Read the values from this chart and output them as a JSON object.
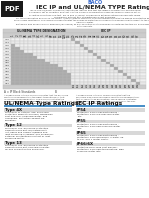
{
  "title": "IEC IP and UL/NEMA TYPE Ratings",
  "subtitle_brand": "BACO",
  "page_bg": "#ffffff",
  "pdf_icon_bg": "#1a1a1a",
  "pdf_text": "PDF",
  "brand_color": "#3366cc",
  "section_bar_color": "#4a90c8",
  "body_text_color": "#222222",
  "ul_nema_title": "UL/NEMA Type Ratings",
  "iec_ip_title": "IEC IP Ratings",
  "nema_cols": [
    "1",
    "2",
    "3",
    "3R",
    "3S",
    "4",
    "4X",
    "5",
    "6",
    "6P",
    "11",
    "12",
    "12K",
    "13"
  ],
  "ip_rows": [
    "IP20",
    "IP21",
    "IP22",
    "IP30",
    "IP32",
    "IP42",
    "IP43",
    "IP50",
    "IP52",
    "IP53",
    "IP54",
    "IP55",
    "IP60",
    "IP65",
    "IP66",
    "IP67"
  ],
  "ip_right_col": [
    "20",
    "21",
    "22",
    "30",
    "32",
    "42",
    "43",
    "50",
    "52",
    "53",
    "54",
    "55",
    "60",
    "65",
    "66",
    "67"
  ],
  "nema_shaded": {
    "IP20": [],
    "IP21": [],
    "IP22": [
      0
    ],
    "IP30": [
      0,
      1
    ],
    "IP32": [
      0,
      1,
      2
    ],
    "IP42": [
      0,
      1,
      2,
      3,
      4
    ],
    "IP43": [
      0,
      1,
      2,
      3,
      4,
      5
    ],
    "IP50": [
      0,
      1,
      2,
      3,
      4,
      5,
      6,
      7
    ],
    "IP52": [
      0,
      1,
      2,
      3,
      4,
      5,
      6,
      7,
      8
    ],
    "IP53": [
      0,
      1,
      2,
      3,
      4,
      5,
      6,
      7,
      8,
      9,
      10
    ],
    "IP54": [
      0,
      1,
      2,
      3,
      4,
      5,
      6,
      7,
      8,
      9,
      10,
      11
    ],
    "IP55": [
      0,
      1,
      2,
      3,
      4,
      5,
      6,
      7,
      8,
      9,
      10,
      11,
      12
    ],
    "IP60": [
      0,
      1,
      2,
      3,
      4,
      5,
      6,
      7,
      8,
      9,
      10,
      11,
      12,
      13
    ],
    "IP65": [
      0,
      1,
      2,
      3,
      4,
      5,
      6,
      7,
      8,
      9,
      10,
      11,
      12,
      13
    ],
    "IP66": [
      0,
      1,
      2,
      3,
      4,
      5,
      6,
      7,
      8,
      9,
      10,
      11,
      12,
      13
    ],
    "IP67": [
      0,
      1,
      2,
      3,
      4,
      5,
      6,
      7,
      8,
      9,
      10,
      11,
      12,
      13
    ]
  },
  "ip_right_shaded": {
    "IP20": [
      0
    ],
    "IP21": [
      1
    ],
    "IP22": [
      2
    ],
    "IP30": [
      3
    ],
    "IP32": [
      4
    ],
    "IP42": [
      5
    ],
    "IP43": [
      6
    ],
    "IP50": [
      7
    ],
    "IP52": [
      8
    ],
    "IP53": [
      9
    ],
    "IP54": [
      10
    ],
    "IP55": [
      11
    ],
    "IP60": [
      12
    ],
    "IP65": [
      13
    ],
    "IP66": [
      14
    ],
    "IP67": [
      15
    ]
  },
  "ul_types": [
    [
      "Type 4X",
      "For indoor or outdoor use. Enclosure protection against corrosion, windblown dust and rain, splashing water, and hosedown. Protection against ice formation."
    ],
    [
      "Type 12",
      "For indoor use. Enclosure protection against falling dirt, circulating dust, lint, fibers and flyings; dripping and light splashing of liquids; and occasional external unintentional contact of light splashing water."
    ],
    [
      "Type 13",
      "For indoor use. Enclosure protection against falling dirt, spraying of water, oil and coolant on the enclosure."
    ]
  ],
  "ip_types": [
    [
      "IP54",
      "Protection from solid dust ingress - Protection from low pressure water jets."
    ],
    [
      "IP55",
      "Protection from solid dust ingress - Protection from high pressure water jets."
    ],
    [
      "IP65",
      "Protection from solid dust ingress - Protection from immersion in water up to 1m. and 1 meter depth."
    ],
    [
      "IP66/6X",
      "Protected from solid dust ingress - Protection from high temperature, high pressure Water jets."
    ]
  ],
  "shade_dark": "#aaaaaa",
  "shade_light": "#dddddd",
  "row_even": "#f0f0f0",
  "row_odd": "#e8e8e8",
  "header_bg": "#cccccc",
  "grid_line": "#bbbbbb"
}
